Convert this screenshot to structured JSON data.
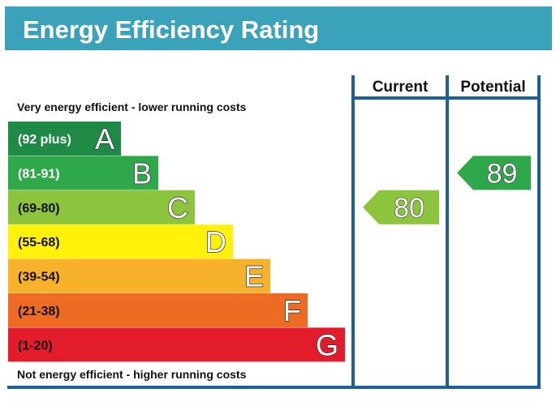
{
  "header": {
    "title": "Energy Efficiency Rating"
  },
  "colors": {
    "header_bg": "#3aa3b9",
    "frame": "#1f5f97",
    "text": "#111111"
  },
  "chart_data": {
    "type": "bar",
    "title": "Energy Efficiency Rating",
    "top_note": "Very energy efficient - lower running costs",
    "bottom_note": "Not energy efficient - higher running costs",
    "bands": [
      {
        "range": "(92 plus)",
        "letter": "A",
        "color": "#1e8a45"
      },
      {
        "range": "(81-91)",
        "letter": "B",
        "color": "#2ea84a"
      },
      {
        "range": "(69-80)",
        "letter": "C",
        "color": "#8cc43d"
      },
      {
        "range": "(55-68)",
        "letter": "D",
        "color": "#fff10a"
      },
      {
        "range": "(39-54)",
        "letter": "E",
        "color": "#f8b12b"
      },
      {
        "range": "(21-38)",
        "letter": "F",
        "color": "#ed6b22"
      },
      {
        "range": "(1-20)",
        "letter": "G",
        "color": "#e31c2b"
      }
    ],
    "columns": [
      {
        "label": "Current",
        "value": 80,
        "band": "C",
        "color": "#8cc43d"
      },
      {
        "label": "Potential",
        "value": 89,
        "band": "B",
        "color": "#2ea84a"
      }
    ]
  }
}
